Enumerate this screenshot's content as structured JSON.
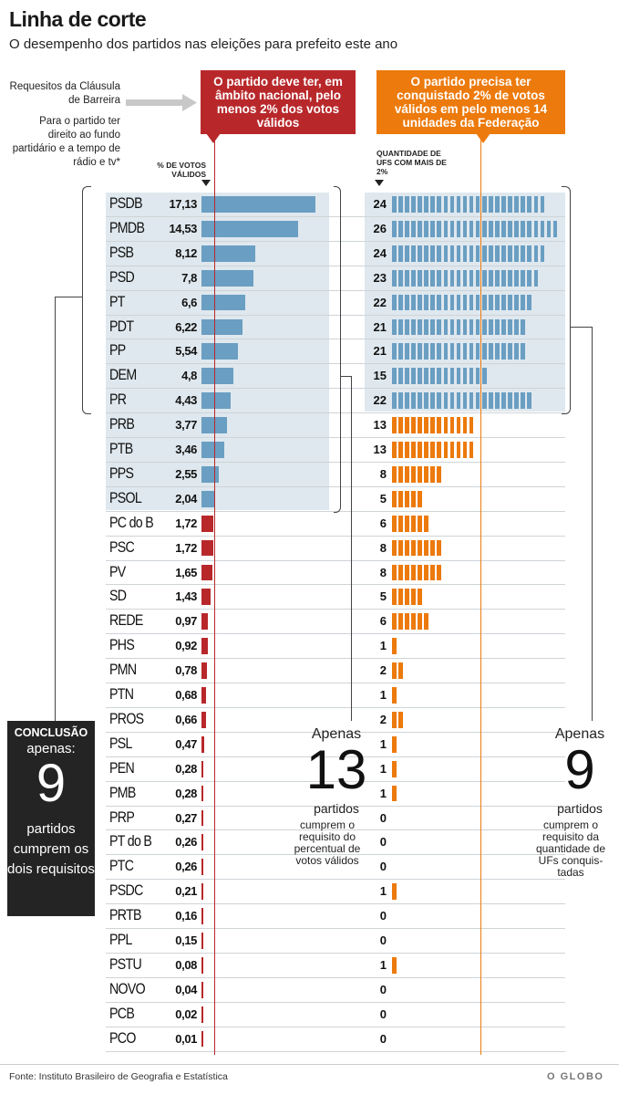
{
  "header": {
    "title": "Linha de corte",
    "subtitle": "O desempenho dos partidos nas eleições para prefeito este ano"
  },
  "requirements": {
    "label": "Requesitos da Cláusula de Barreira",
    "note": "Para o partido ter direito ao fundo partidário e a tempo de rádio e tv*",
    "red_callout": "O partido deve ter, em âmbito nacional, pelo menos 2% dos votos válidos",
    "orange_callout": "O partido precisa ter conquistado 2% de votos válidos em pelo menos 14 unidades da Federação"
  },
  "column_headers": {
    "votes": "% DE VOTOS VÁLIDOS",
    "ufs": "QUANTIDADE DE UFS COM MAIS DE 2%"
  },
  "annotations": {
    "votes_apenas": "Apenas",
    "votes_count": "13",
    "votes_partidos": "partidos",
    "votes_desc": "cumprem o requisito do percentual de votos válidos",
    "ufs_apenas": "Apenas",
    "ufs_count": "9",
    "ufs_partidos": "partidos",
    "ufs_desc": "cumprem o requisito da quantidade de UFs conquis-tadas"
  },
  "conclusion": {
    "label": "CONCLUSÃO",
    "text": "apenas:",
    "count": "9",
    "desc": "partidos cumprem os dois requisitos"
  },
  "footer": {
    "source": "Fonte: Instituto Brasileiro de Geografia e Estatística",
    "logo": "O GLOBO"
  },
  "colors": {
    "blue_bar": "#6a9ec2",
    "red": "#b8282b",
    "orange": "#ec7a0c",
    "highlight_bg": "#dfe8ee"
  },
  "chart_data": {
    "type": "bar",
    "thresholds": {
      "pct_votes": 2,
      "ufs": 14
    },
    "parties": [
      {
        "name": "PSDB",
        "pct": "17,13",
        "pct_value": 17.13,
        "ufs": 24
      },
      {
        "name": "PMDB",
        "pct": "14,53",
        "pct_value": 14.53,
        "ufs": 26
      },
      {
        "name": "PSB",
        "pct": "8,12",
        "pct_value": 8.12,
        "ufs": 24
      },
      {
        "name": "PSD",
        "pct": "7,8",
        "pct_value": 7.8,
        "ufs": 23
      },
      {
        "name": "PT",
        "pct": "6,6",
        "pct_value": 6.6,
        "ufs": 22
      },
      {
        "name": "PDT",
        "pct": "6,22",
        "pct_value": 6.22,
        "ufs": 21
      },
      {
        "name": "PP",
        "pct": "5,54",
        "pct_value": 5.54,
        "ufs": 21
      },
      {
        "name": "DEM",
        "pct": "4,8",
        "pct_value": 4.8,
        "ufs": 15
      },
      {
        "name": "PR",
        "pct": "4,43",
        "pct_value": 4.43,
        "ufs": 22
      },
      {
        "name": "PRB",
        "pct": "3,77",
        "pct_value": 3.77,
        "ufs": 13
      },
      {
        "name": "PTB",
        "pct": "3,46",
        "pct_value": 3.46,
        "ufs": 13
      },
      {
        "name": "PPS",
        "pct": "2,55",
        "pct_value": 2.55,
        "ufs": 8
      },
      {
        "name": "PSOL",
        "pct": "2,04",
        "pct_value": 2.04,
        "ufs": 5
      },
      {
        "name": "PC do B",
        "pct": "1,72",
        "pct_value": 1.72,
        "ufs": 6
      },
      {
        "name": "PSC",
        "pct": "1,72",
        "pct_value": 1.72,
        "ufs": 8
      },
      {
        "name": "PV",
        "pct": "1,65",
        "pct_value": 1.65,
        "ufs": 8
      },
      {
        "name": "SD",
        "pct": "1,43",
        "pct_value": 1.43,
        "ufs": 5
      },
      {
        "name": "REDE",
        "pct": "0,97",
        "pct_value": 0.97,
        "ufs": 6
      },
      {
        "name": "PHS",
        "pct": "0,92",
        "pct_value": 0.92,
        "ufs": 1
      },
      {
        "name": "PMN",
        "pct": "0,78",
        "pct_value": 0.78,
        "ufs": 2
      },
      {
        "name": "PTN",
        "pct": "0,68",
        "pct_value": 0.68,
        "ufs": 1
      },
      {
        "name": "PROS",
        "pct": "0,66",
        "pct_value": 0.66,
        "ufs": 2
      },
      {
        "name": "PSL",
        "pct": "0,47",
        "pct_value": 0.47,
        "ufs": 1
      },
      {
        "name": "PEN",
        "pct": "0,28",
        "pct_value": 0.28,
        "ufs": 1
      },
      {
        "name": "PMB",
        "pct": "0,28",
        "pct_value": 0.28,
        "ufs": 1
      },
      {
        "name": "PRP",
        "pct": "0,27",
        "pct_value": 0.27,
        "ufs": 0
      },
      {
        "name": "PT do B",
        "pct": "0,26",
        "pct_value": 0.26,
        "ufs": 0
      },
      {
        "name": "PTC",
        "pct": "0,26",
        "pct_value": 0.26,
        "ufs": 0
      },
      {
        "name": "PSDC",
        "pct": "0,21",
        "pct_value": 0.21,
        "ufs": 1
      },
      {
        "name": "PRTB",
        "pct": "0,16",
        "pct_value": 0.16,
        "ufs": 0
      },
      {
        "name": "PPL",
        "pct": "0,15",
        "pct_value": 0.15,
        "ufs": 0
      },
      {
        "name": "PSTU",
        "pct": "0,08",
        "pct_value": 0.08,
        "ufs": 1
      },
      {
        "name": "NOVO",
        "pct": "0,04",
        "pct_value": 0.04,
        "ufs": 0
      },
      {
        "name": "PCB",
        "pct": "0,02",
        "pct_value": 0.02,
        "ufs": 0
      },
      {
        "name": "PCO",
        "pct": "0,01",
        "pct_value": 0.01,
        "ufs": 0
      }
    ]
  }
}
